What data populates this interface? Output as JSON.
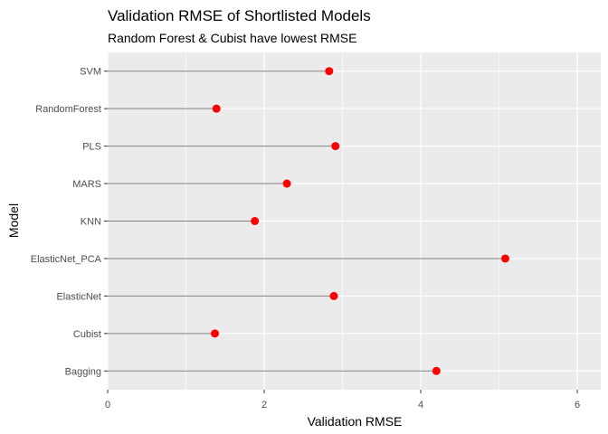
{
  "chart_data": {
    "type": "lollipop",
    "title": "Validation RMSE of Shortlisted Models",
    "subtitle": "Random Forest & Cubist have lowest RMSE",
    "xlabel": "Validation RMSE",
    "ylabel": "Model",
    "xlim": [
      0,
      6.3
    ],
    "x_ticks": [
      0,
      2,
      4,
      6
    ],
    "grid": true,
    "background": "#ebebeb",
    "point_color": "#ff0000",
    "segment_color": "#7f7f7f",
    "categories": [
      "Bagging",
      "Cubist",
      "ElasticNet",
      "ElasticNet_PCA",
      "KNN",
      "MARS",
      "PLS",
      "RandomForest",
      "SVM"
    ],
    "values": [
      4.2,
      1.37,
      2.89,
      5.08,
      1.88,
      2.29,
      2.91,
      1.39,
      2.83
    ]
  }
}
